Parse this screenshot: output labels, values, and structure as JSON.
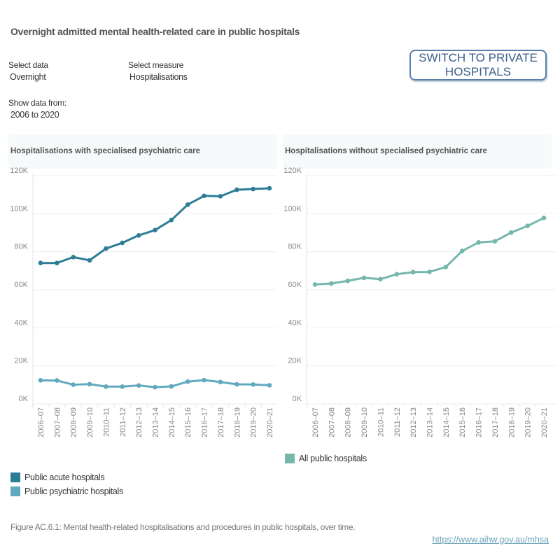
{
  "header": {
    "title": "Overnight admitted mental health-related care in public hospitals"
  },
  "filters": {
    "select_data": {
      "label": "Select data",
      "value": "Overnight"
    },
    "select_measure": {
      "label": "Select measure",
      "value": "Hospitalisations"
    },
    "show_data_from": {
      "label": "Show data from:",
      "value": "2006 to 2020"
    }
  },
  "switch_button": {
    "label": "SWITCH TO PRIVATE HOSPITALS"
  },
  "chart_data": [
    {
      "type": "line",
      "title": "Hospitalisations with specialised psychiatric care",
      "categories": [
        "2006–07",
        "2007–08",
        "2008–09",
        "2009–10",
        "2010–11",
        "2011–12",
        "2012–13",
        "2013–14",
        "2014–15",
        "2015–16",
        "2016–17",
        "2017–18",
        "2018–19",
        "2019–20",
        "2020–21"
      ],
      "ylim": [
        0,
        120000
      ],
      "yticks": [
        "0K",
        "20K",
        "40K",
        "60K",
        "80K",
        "100K",
        "120K"
      ],
      "grid": true,
      "legend_placement": "bottom-left",
      "series": [
        {
          "name": "Public acute hospitals",
          "color": "#2e7d96",
          "values": [
            74100,
            74100,
            77200,
            75500,
            81700,
            84700,
            88600,
            91400,
            96700,
            104800,
            109400,
            109200,
            112600,
            113000,
            113400
          ]
        },
        {
          "name": "Public psychiatric hospitals",
          "color": "#62a9c0",
          "values": [
            12400,
            12300,
            10100,
            10400,
            9100,
            9100,
            9700,
            8800,
            9200,
            11700,
            12500,
            11500,
            10300,
            10200,
            9800
          ]
        }
      ]
    },
    {
      "type": "line",
      "title": "Hospitalisations without specialised psychiatric care",
      "categories": [
        "2006–07",
        "2007–08",
        "2008–09",
        "2009–10",
        "2010–11",
        "2011–12",
        "2012–13",
        "2013–14",
        "2014–15",
        "2015–16",
        "2016–17",
        "2017–18",
        "2018–19",
        "2019–20",
        "2020–21"
      ],
      "ylim": [
        0,
        120000
      ],
      "yticks": [
        "0K",
        "20K",
        "40K",
        "60K",
        "80K",
        "100K",
        "120K"
      ],
      "grid": true,
      "legend_placement": "bottom",
      "series": [
        {
          "name": "All public hospitals",
          "color": "#76b7ad",
          "values": [
            62800,
            63300,
            64700,
            66300,
            65600,
            68200,
            69300,
            69400,
            72000,
            80400,
            84900,
            85500,
            90100,
            93600,
            97800
          ]
        }
      ]
    }
  ],
  "footer": {
    "caption": "Figure AC.6.1: Mental health-related hospitalisations and procedures in public hospitals, over time.",
    "link": "https://www.aihw.gov.au/mhsa"
  }
}
